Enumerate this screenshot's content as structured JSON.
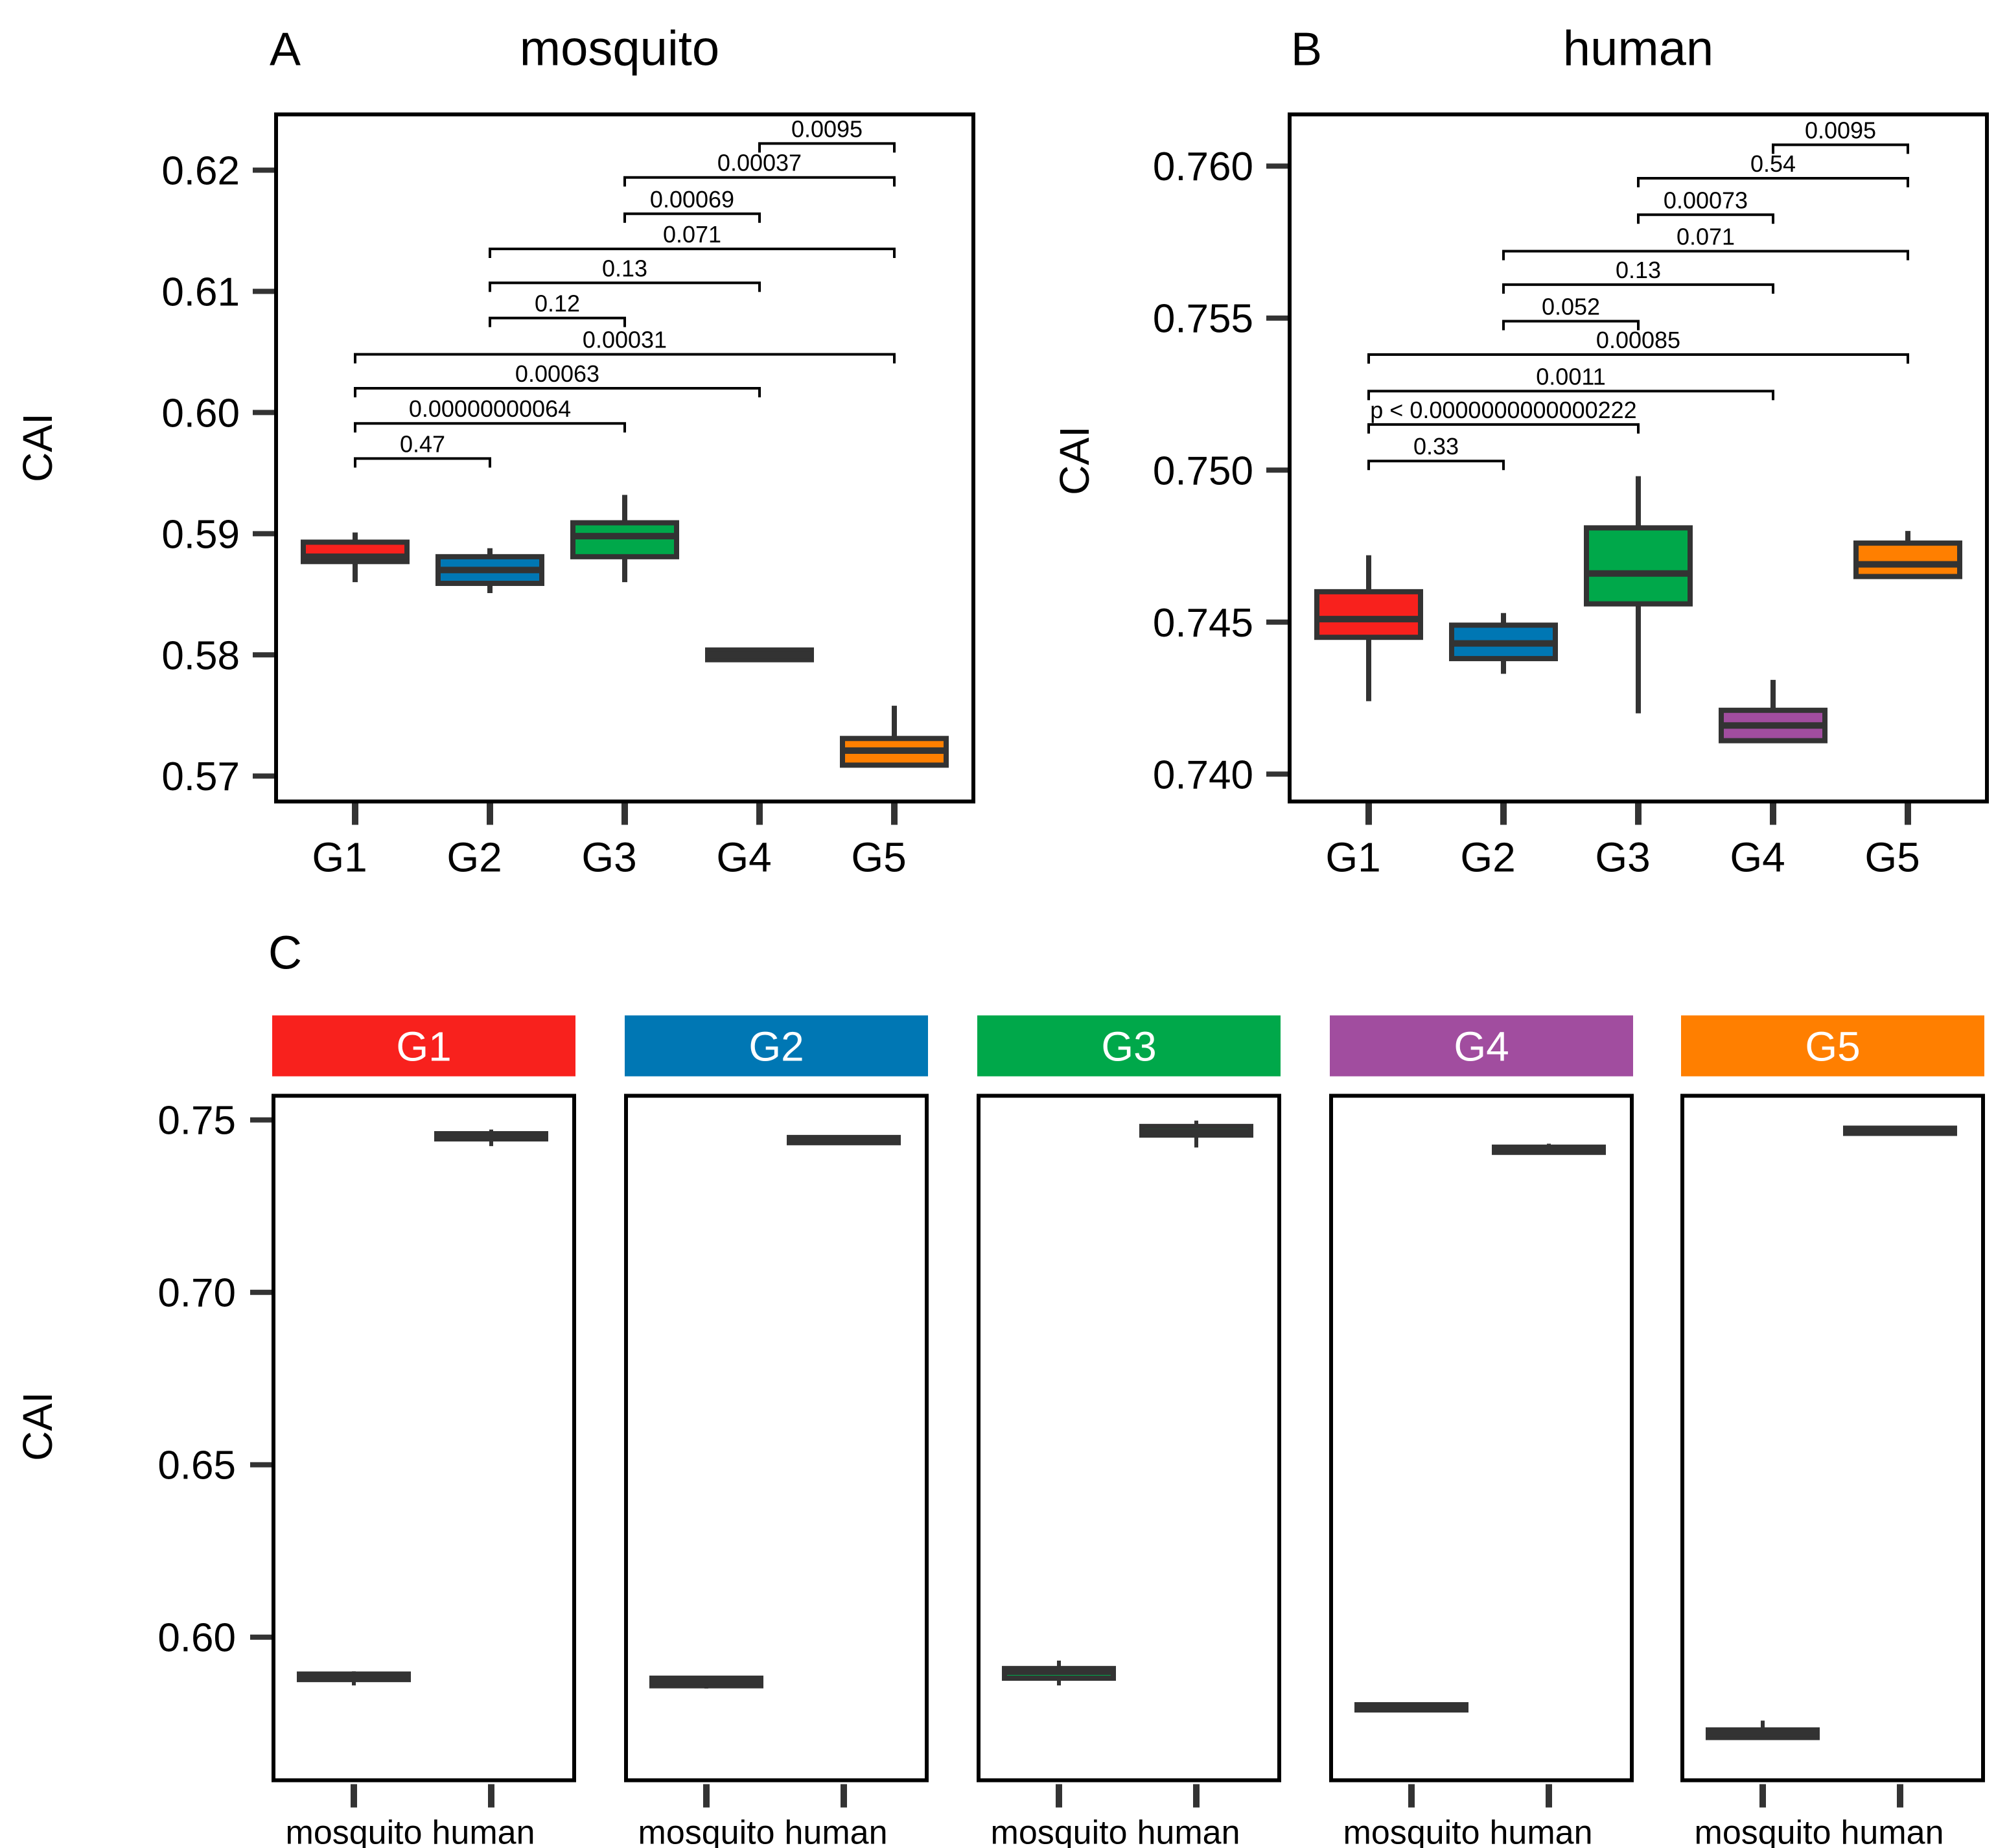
{
  "chart_data": [
    {
      "type": "box",
      "panel_label": "A",
      "title": "mosquito",
      "ylabel": "CAI",
      "ylim": [
        0.5679,
        0.6246
      ],
      "yticks": [
        0.57,
        0.58,
        0.59,
        0.6,
        0.61,
        0.62
      ],
      "ytick_labels": [
        "0.57",
        "0.58",
        "0.59",
        "0.60",
        "0.61",
        "0.62"
      ],
      "categories": [
        "G1",
        "G2",
        "G3",
        "G4",
        "G5"
      ],
      "boxes": [
        {
          "group": "G1",
          "whisker_low": 0.586,
          "q1": 0.5877,
          "median": 0.5881,
          "q3": 0.5893,
          "whisker_high": 0.5901
        },
        {
          "group": "G2",
          "whisker_low": 0.5851,
          "q1": 0.5859,
          "median": 0.587,
          "q3": 0.5881,
          "whisker_high": 0.5888
        },
        {
          "group": "G3",
          "whisker_low": 0.586,
          "q1": 0.5881,
          "median": 0.5898,
          "q3": 0.5909,
          "whisker_high": 0.5932
        },
        {
          "group": "G4",
          "whisker_low": 0.5796,
          "q1": 0.5796,
          "median": 0.58,
          "q3": 0.5804,
          "whisker_high": 0.5804
        },
        {
          "group": "G5",
          "whisker_low": 0.5708,
          "q1": 0.5709,
          "median": 0.5721,
          "q3": 0.5731,
          "whisker_high": 0.5758
        }
      ],
      "comparisons": [
        {
          "pair": [
            1,
            2
          ],
          "label": "0.47",
          "level": 0.5962
        },
        {
          "pair": [
            1,
            3
          ],
          "label": "0.00000000064",
          "level": 0.5991
        },
        {
          "pair": [
            1,
            4
          ],
          "label": "0.00063",
          "level": 0.602
        },
        {
          "pair": [
            1,
            5
          ],
          "label": "0.00031",
          "level": 0.6048
        },
        {
          "pair": [
            2,
            3
          ],
          "label": "0.12",
          "level": 0.6078
        },
        {
          "pair": [
            2,
            4
          ],
          "label": "0.13",
          "level": 0.6107
        },
        {
          "pair": [
            2,
            5
          ],
          "label": "0.071",
          "level": 0.6135
        },
        {
          "pair": [
            3,
            4
          ],
          "label": "0.00069",
          "level": 0.6164
        },
        {
          "pair": [
            3,
            5
          ],
          "label": "0.00037",
          "level": 0.6194
        },
        {
          "pair": [
            4,
            5
          ],
          "label": "0.0095",
          "level": 0.6222
        }
      ]
    },
    {
      "type": "box",
      "panel_label": "B",
      "title": "human",
      "ylabel": "CAI",
      "ylim": [
        0.7391,
        0.7617
      ],
      "yticks": [
        0.74,
        0.745,
        0.75,
        0.755,
        0.76
      ],
      "ytick_labels": [
        "0.740",
        "0.745",
        "0.750",
        "0.755",
        "0.760"
      ],
      "categories": [
        "G1",
        "G2",
        "G3",
        "G4",
        "G5"
      ],
      "boxes": [
        {
          "group": "G1",
          "whisker_low": 0.7424,
          "q1": 0.7445,
          "median": 0.7451,
          "q3": 0.746,
          "whisker_high": 0.7472
        },
        {
          "group": "G2",
          "whisker_low": 0.7433,
          "q1": 0.7438,
          "median": 0.7443,
          "q3": 0.7449,
          "whisker_high": 0.7453
        },
        {
          "group": "G3",
          "whisker_low": 0.742,
          "q1": 0.7456,
          "median": 0.7466,
          "q3": 0.7481,
          "whisker_high": 0.7498
        },
        {
          "group": "G4",
          "whisker_low": 0.7411,
          "q1": 0.7411,
          "median": 0.7416,
          "q3": 0.7421,
          "whisker_high": 0.7431
        },
        {
          "group": "G5",
          "whisker_low": 0.7465,
          "q1": 0.7465,
          "median": 0.7469,
          "q3": 0.7476,
          "whisker_high": 0.748
        }
      ],
      "comparisons": [
        {
          "pair": [
            1,
            2
          ],
          "label": "0.33",
          "level": 0.7503
        },
        {
          "pair": [
            1,
            3
          ],
          "label": "p < 0.0000000000000222",
          "level": 0.7515
        },
        {
          "pair": [
            1,
            4
          ],
          "label": "0.0011",
          "level": 0.7526
        },
        {
          "pair": [
            1,
            5
          ],
          "label": "0.00085",
          "level": 0.7538
        },
        {
          "pair": [
            2,
            3
          ],
          "label": "0.052",
          "level": 0.7549
        },
        {
          "pair": [
            2,
            4
          ],
          "label": "0.13",
          "level": 0.7561
        },
        {
          "pair": [
            2,
            5
          ],
          "label": "0.071",
          "level": 0.7572
        },
        {
          "pair": [
            3,
            4
          ],
          "label": "0.00073",
          "level": 0.7584
        },
        {
          "pair": [
            3,
            5
          ],
          "label": "0.54",
          "level": 0.7596
        },
        {
          "pair": [
            4,
            5
          ],
          "label": "0.0095",
          "level": 0.7607
        }
      ]
    },
    {
      "type": "box-facet",
      "panel_label": "C",
      "ylabel": "CAI",
      "ylim": [
        0.5585,
        0.757
      ],
      "yticks": [
        0.6,
        0.65,
        0.7,
        0.75
      ],
      "ytick_labels": [
        "0.60",
        "0.65",
        "0.70",
        "0.75"
      ],
      "x_categories": [
        "mosquito",
        "human"
      ],
      "facets": [
        {
          "name": "G1",
          "color": "#F8211D",
          "mosquito": [
            0.586,
            0.5877,
            0.5881,
            0.5893,
            0.5901
          ],
          "human": [
            0.7424,
            0.7445,
            0.7451,
            0.746,
            0.7472
          ]
        },
        {
          "name": "G2",
          "color": "#0077B4",
          "mosquito": [
            0.5851,
            0.5859,
            0.587,
            0.5881,
            0.5888
          ],
          "human": [
            0.7433,
            0.7438,
            0.7443,
            0.7449,
            0.7453
          ]
        },
        {
          "name": "G3",
          "color": "#00A84A",
          "mosquito": [
            0.586,
            0.5881,
            0.5898,
            0.5909,
            0.5932
          ],
          "human": [
            0.742,
            0.7456,
            0.7466,
            0.7481,
            0.7498
          ]
        },
        {
          "name": "G4",
          "color": "#A14D9F",
          "mosquito": [
            0.5796,
            0.5796,
            0.58,
            0.5804,
            0.5804
          ],
          "human": [
            0.7411,
            0.7411,
            0.7416,
            0.7421,
            0.7431
          ]
        },
        {
          "name": "G5",
          "color": "#FF7F00",
          "mosquito": [
            0.5708,
            0.5709,
            0.5721,
            0.5731,
            0.5758
          ],
          "human": [
            0.7465,
            0.7465,
            0.7469,
            0.7476,
            0.748
          ]
        }
      ]
    }
  ],
  "colors": {
    "G1": "#F8211D",
    "G2": "#0077B4",
    "G3": "#00A84A",
    "G4": "#A14D9F",
    "G5": "#FF7F00",
    "box_outline": "#333333"
  }
}
